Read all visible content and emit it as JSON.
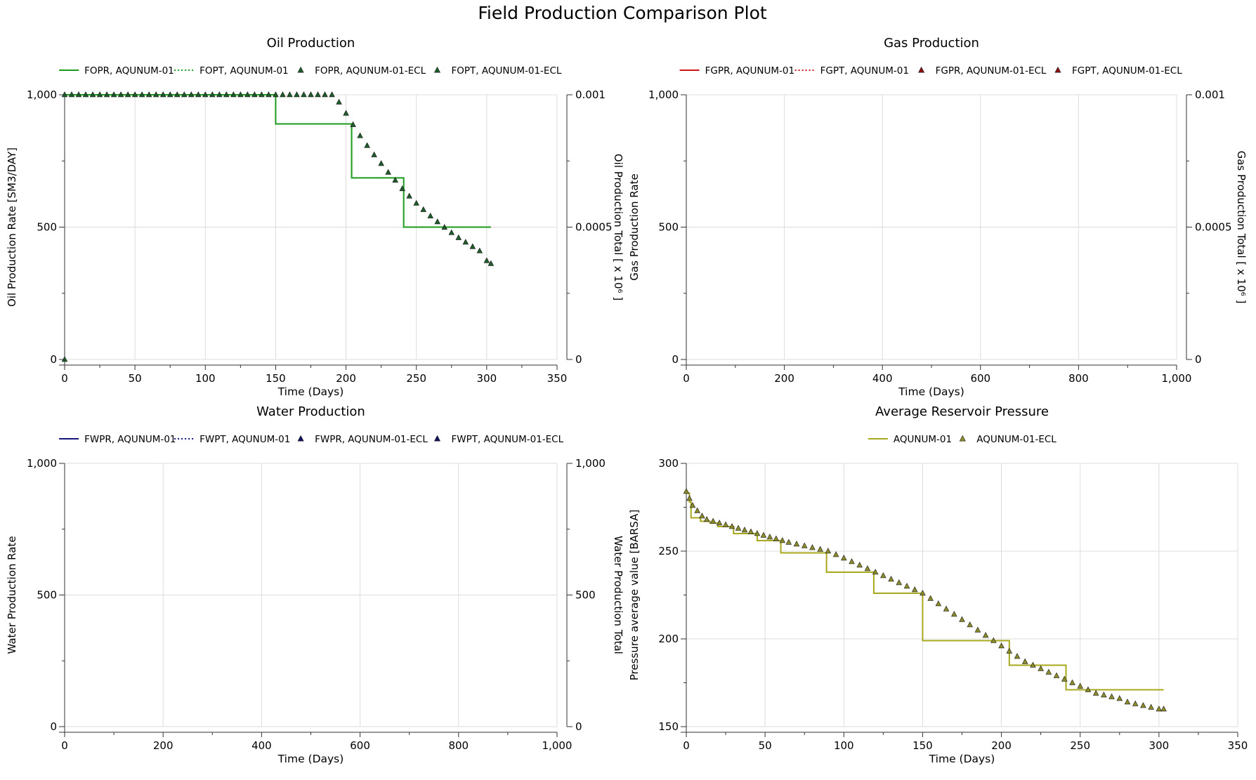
{
  "page_title": "Field Production Comparison Plot",
  "chart_data": [
    {
      "id": "oil",
      "type": "line",
      "title": "Oil Production",
      "xlabel": "Time (Days)",
      "ylabel": "Oil Production Rate [SM3/DAY]",
      "y2label": "Oil Production Total [ x 10⁶ ]",
      "xlim": [
        0,
        350
      ],
      "ylim": [
        0,
        1000
      ],
      "y2lim": [
        0,
        0.001
      ],
      "xticks": [
        0,
        50,
        100,
        150,
        200,
        250,
        300,
        350
      ],
      "xtick_labels": [
        "0",
        "50",
        "100",
        "150",
        "200",
        "250",
        "300",
        "350"
      ],
      "yticks": [
        0,
        500,
        1000
      ],
      "ytick_labels": [
        "0",
        "500",
        "1,000"
      ],
      "y2ticks": [
        0,
        0.0005,
        0.001
      ],
      "y2tick_labels": [
        "0",
        "0.0005",
        "0.001"
      ],
      "grid": true,
      "legend_placement": "top",
      "legend": [
        {
          "label": "FOPR, AQUNUM-01",
          "style": "solid",
          "color": "#1a9a1a"
        },
        {
          "label": "FOPT, AQUNUM-01",
          "style": "dotted",
          "color": "#1a9a1a"
        },
        {
          "label": "FOPR, AQUNUM-01-ECL",
          "style": "triangle",
          "color": "#1d5c2a"
        },
        {
          "label": "FOPT, AQUNUM-01-ECL",
          "style": "triangle",
          "color": "#1d5c2a"
        }
      ],
      "series": [
        {
          "name": "FOPR, AQUNUM-01",
          "kind": "step",
          "color": "#1a9a1a",
          "x": [
            0,
            150,
            150,
            204,
            204,
            241,
            241,
            303
          ],
          "y": [
            1000,
            1000,
            890,
            890,
            686,
            686,
            500,
            500
          ]
        },
        {
          "name": "FOPR, AQUNUM-01-ECL",
          "kind": "markers",
          "color": "#1d5c2a",
          "x": [
            0,
            0,
            5,
            10,
            15,
            20,
            25,
            30,
            35,
            40,
            45,
            50,
            55,
            60,
            65,
            70,
            75,
            80,
            85,
            90,
            95,
            100,
            105,
            110,
            115,
            120,
            125,
            130,
            135,
            140,
            145,
            150,
            155,
            160,
            165,
            170,
            175,
            180,
            185,
            190,
            195,
            200,
            205,
            210,
            215,
            220,
            225,
            230,
            235,
            240,
            245,
            250,
            255,
            260,
            265,
            270,
            275,
            280,
            285,
            290,
            295,
            300,
            303
          ],
          "y": [
            0,
            1000,
            1000,
            1000,
            1000,
            1000,
            1000,
            1000,
            1000,
            1000,
            1000,
            1000,
            1000,
            1000,
            1000,
            1000,
            1000,
            1000,
            1000,
            1000,
            1000,
            1000,
            1000,
            1000,
            1000,
            1000,
            1000,
            1000,
            1000,
            1000,
            1000,
            1000,
            1000,
            1000,
            1000,
            1000,
            1000,
            1000,
            1000,
            1000,
            972,
            930,
            887,
            845,
            808,
            773,
            740,
            707,
            677,
            645,
            617,
            590,
            566,
            542,
            520,
            499,
            479,
            460,
            443,
            426,
            410,
            373,
            362
          ]
        }
      ]
    },
    {
      "id": "gas",
      "type": "line",
      "title": "Gas Production",
      "xlabel": "Time (Days)",
      "ylabel": "Gas Production Rate",
      "y2label": "Gas Production Total [ x 10⁶ ]",
      "xlim": [
        0,
        1000
      ],
      "ylim": [
        0,
        1000
      ],
      "y2lim": [
        0,
        0.001
      ],
      "xticks": [
        0,
        200,
        400,
        600,
        800,
        1000
      ],
      "xtick_labels": [
        "0",
        "200",
        "400",
        "600",
        "800",
        "1,000"
      ],
      "yticks": [
        0,
        500,
        1000
      ],
      "ytick_labels": [
        "0",
        "500",
        "1,000"
      ],
      "y2ticks": [
        0,
        0.0005,
        0.001
      ],
      "y2tick_labels": [
        "0",
        "0.0005",
        "0.001"
      ],
      "grid": true,
      "legend_placement": "top",
      "legend": [
        {
          "label": "FGPR, AQUNUM-01",
          "style": "solid",
          "color": "#cc1414"
        },
        {
          "label": "FGPT, AQUNUM-01",
          "style": "dotted",
          "color": "#cc1414"
        },
        {
          "label": "FGPR, AQUNUM-01-ECL",
          "style": "triangle",
          "color": "#8b1010"
        },
        {
          "label": "FGPT, AQUNUM-01-ECL",
          "style": "triangle",
          "color": "#8b1010"
        }
      ],
      "series": []
    },
    {
      "id": "water",
      "type": "line",
      "title": "Water Production",
      "xlabel": "Time (Days)",
      "ylabel": "Water Production Rate",
      "y2label": "Water Production Total",
      "xlim": [
        0,
        1000
      ],
      "ylim": [
        0,
        1000
      ],
      "y2lim": [
        0,
        1000
      ],
      "xticks": [
        0,
        200,
        400,
        600,
        800,
        1000
      ],
      "xtick_labels": [
        "0",
        "200",
        "400",
        "600",
        "800",
        "1,000"
      ],
      "yticks": [
        0,
        500,
        1000
      ],
      "ytick_labels": [
        "0",
        "500",
        "1,000"
      ],
      "y2ticks": [
        0,
        500,
        1000
      ],
      "y2tick_labels": [
        "0",
        "500",
        "1,000"
      ],
      "grid": true,
      "legend_placement": "top",
      "legend": [
        {
          "label": "FWPR, AQUNUM-01",
          "style": "solid",
          "color": "#14147a"
        },
        {
          "label": "FWPT, AQUNUM-01",
          "style": "dotted",
          "color": "#14147a"
        },
        {
          "label": "FWPR, AQUNUM-01-ECL",
          "style": "triangle",
          "color": "#101060"
        },
        {
          "label": "FWPT, AQUNUM-01-ECL",
          "style": "triangle",
          "color": "#101060"
        }
      ],
      "series": []
    },
    {
      "id": "pressure",
      "type": "line",
      "title": "Average Reservoir Pressure",
      "xlabel": "Time (Days)",
      "ylabel": "Pressure average value [BARSA]",
      "xlim": [
        0,
        350
      ],
      "ylim": [
        150,
        300
      ],
      "xticks": [
        0,
        50,
        100,
        150,
        200,
        250,
        300,
        350
      ],
      "xtick_labels": [
        "0",
        "50",
        "100",
        "150",
        "200",
        "250",
        "300",
        "350"
      ],
      "yticks": [
        150,
        200,
        250,
        300
      ],
      "ytick_labels": [
        "150",
        "200",
        "250",
        "300"
      ],
      "grid": true,
      "legend_placement": "top",
      "legend": [
        {
          "label": "AQUNUM-01",
          "style": "solid",
          "color": "#a8a81e"
        },
        {
          "label": "AQUNUM-01-ECL",
          "style": "triangle",
          "color": "#8c8c2a"
        }
      ],
      "series": [
        {
          "name": "AQUNUM-01",
          "kind": "step",
          "color": "#a8a81e",
          "x": [
            0,
            2,
            2,
            3,
            3,
            9,
            9,
            15,
            15,
            20,
            20,
            30,
            30,
            45,
            45,
            60,
            60,
            89,
            89,
            119,
            119,
            150,
            150,
            205,
            205,
            241,
            241,
            303
          ],
          "y": [
            283,
            283,
            278,
            278,
            269,
            269,
            267,
            267,
            266,
            266,
            264,
            264,
            260,
            260,
            256,
            256,
            249,
            249,
            238,
            238,
            226,
            226,
            199,
            199,
            185,
            185,
            171,
            171
          ]
        },
        {
          "name": "AQUNUM-01-ECL",
          "kind": "markers",
          "color": "#8c8c2a",
          "x": [
            0,
            2,
            4,
            7,
            10,
            13,
            17,
            21,
            25,
            29,
            33,
            37,
            41,
            45,
            49,
            53,
            57,
            61,
            65,
            70,
            75,
            80,
            85,
            90,
            95,
            100,
            105,
            110,
            115,
            120,
            125,
            130,
            135,
            140,
            145,
            150,
            155,
            160,
            165,
            170,
            175,
            180,
            185,
            190,
            195,
            200,
            205,
            210,
            215,
            220,
            225,
            230,
            235,
            240,
            245,
            250,
            255,
            260,
            265,
            270,
            275,
            280,
            285,
            290,
            295,
            300,
            303
          ],
          "y": [
            284,
            280,
            276,
            273,
            270,
            268,
            267,
            266,
            265,
            264,
            263,
            262,
            261,
            260,
            259,
            258,
            257,
            256,
            255,
            254,
            253,
            252,
            251,
            250,
            248,
            246,
            244,
            242,
            240,
            238,
            236,
            234,
            232,
            230,
            228,
            226,
            223,
            220,
            217,
            214,
            211,
            208,
            205,
            202,
            199,
            196,
            193,
            190,
            187,
            185,
            183,
            181,
            179,
            177,
            175,
            173,
            171,
            169,
            168,
            167,
            166,
            164,
            163,
            162,
            161,
            160,
            160
          ]
        }
      ]
    }
  ]
}
